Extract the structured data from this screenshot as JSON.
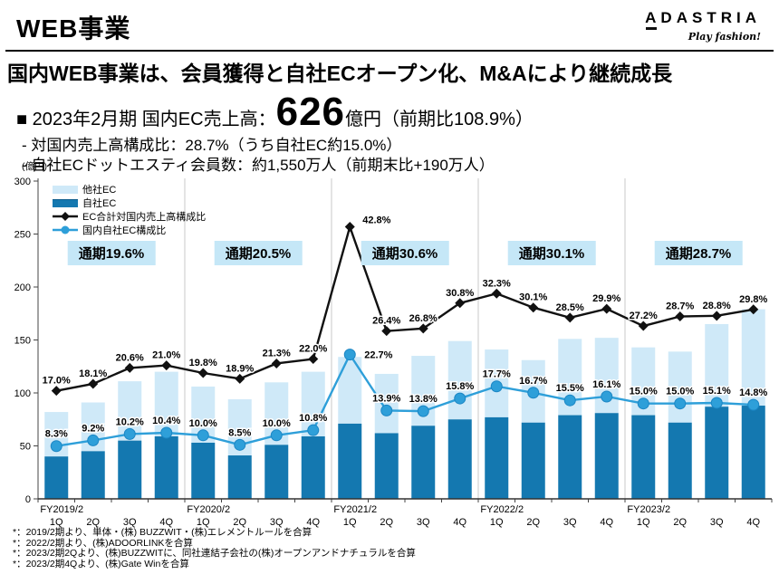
{
  "header": {
    "title": "WEB事業",
    "logo": "ADASTRIA",
    "tagline": "Play fashion!"
  },
  "headline": "国内WEB事業は、会員獲得と自社ECオープン化、M&Aにより継続成長",
  "summary": {
    "line1_prefix": "■ 2023年2月期 国内EC売上高：",
    "line1_value": "626",
    "line1_suffix": "億円（前期比108.9%）",
    "line2": "- 対国内売上高構成比：28.7%（うち自社EC約15.0%）",
    "line3": "- 自社ECドットエスティ会員数：約1,550万人（前期末比+190万人）"
  },
  "chart_data": {
    "type": "bar",
    "subtype": "stacked bars with two percentage lines",
    "unit_label": "(億円)",
    "ylim": [
      0,
      300
    ],
    "yticks": [
      0,
      50,
      100,
      150,
      200,
      250,
      300
    ],
    "line_value_scale": 6,
    "legend_position": "top-left",
    "grid": "vertical group separators only",
    "groups": [
      "FY2019/2",
      "FY2020/2",
      "FY2021/2",
      "FY2022/2",
      "FY2023/2"
    ],
    "quarters": [
      "1Q",
      "2Q",
      "3Q",
      "4Q"
    ],
    "series": [
      {
        "name": "自社EC",
        "type": "bar",
        "stack": "bottom",
        "color": "#1478b0",
        "values": [
          40,
          45,
          55,
          59,
          53,
          41,
          51,
          59,
          71,
          62,
          69,
          75,
          77,
          72,
          79,
          81,
          79,
          72,
          87,
          88
        ]
      },
      {
        "name": "他社EC",
        "type": "bar",
        "stack": "top",
        "color": "#cfe9f8",
        "values": [
          42,
          46,
          56,
          61,
          53,
          53,
          59,
          61,
          63,
          56,
          66,
          74,
          64,
          59,
          72,
          71,
          64,
          67,
          78,
          91
        ]
      },
      {
        "name": "EC合計対国内売上高構成比",
        "type": "line",
        "marker": "diamond",
        "color": "#111111",
        "values": [
          17.0,
          18.1,
          20.6,
          21.0,
          19.8,
          18.9,
          21.3,
          22.0,
          42.8,
          26.4,
          26.8,
          30.8,
          32.3,
          30.1,
          28.5,
          29.9,
          27.2,
          28.7,
          28.8,
          29.8
        ]
      },
      {
        "name": "国内自社EC構成比",
        "type": "line",
        "marker": "circle",
        "color": "#2e9fd9",
        "values": [
          8.3,
          9.2,
          10.2,
          10.4,
          10.0,
          8.5,
          10.0,
          10.8,
          22.7,
          13.9,
          13.8,
          15.8,
          17.7,
          16.7,
          15.5,
          16.1,
          15.0,
          15.0,
          15.1,
          14.8
        ]
      }
    ],
    "annual_labels": [
      "通期19.6%",
      "通期20.5%",
      "通期30.6%",
      "通期30.1%",
      "通期28.7%"
    ],
    "annual_badge_bg": "#c5e7f7"
  },
  "footnotes": [
    "*：2019/2期より、単体・(株) BUZZWIT・(株)エレメントルールを合算",
    "*：2022/2期より、(株)ADOORLINKを合算",
    "*：2023/2期2Qより、(株)BUZZWITに、同社連結子会社の(株)オープンアンドナチュラルを合算",
    "*：2023/2期4Qより、(株)Gate Winを合算"
  ]
}
